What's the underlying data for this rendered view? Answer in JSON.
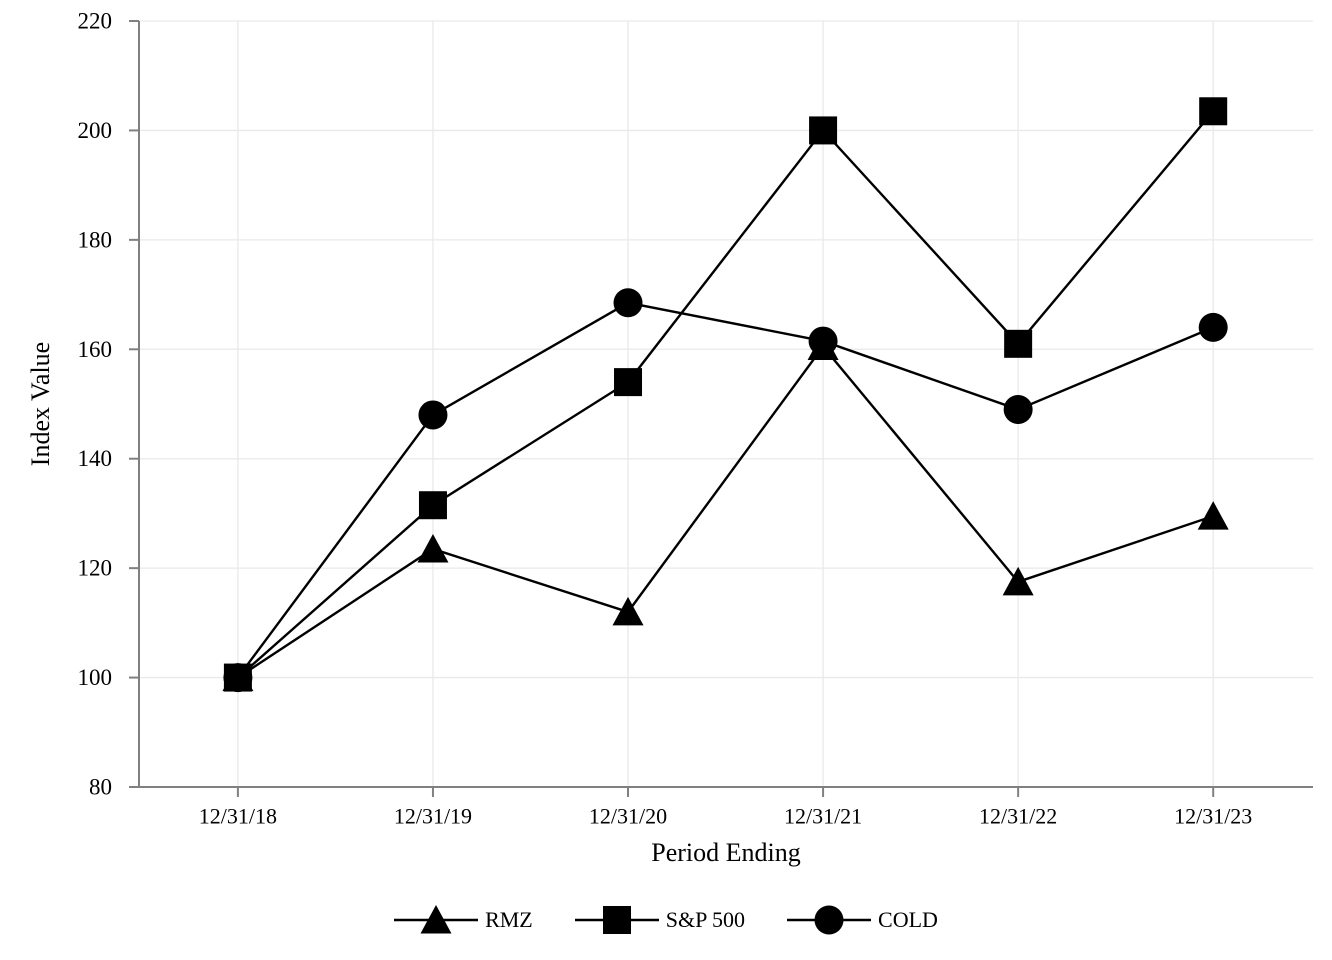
{
  "chart_data": {
    "type": "line",
    "title": "",
    "xlabel": "Period Ending",
    "ylabel": "Index Value",
    "categories": [
      "12/31/18",
      "12/31/19",
      "12/31/20",
      "12/31/21",
      "12/31/22",
      "12/31/23"
    ],
    "ylim": [
      80,
      220
    ],
    "ytick_step": 20,
    "ytick_labels": [
      "80",
      "100",
      "120",
      "140",
      "160",
      "180",
      "200",
      "220"
    ],
    "grid": true,
    "legend_position": "bottom-center",
    "legend_order": [
      "RMZ",
      "S&P 500",
      "COLD"
    ],
    "series": [
      {
        "name": "RMZ",
        "marker": "triangle",
        "values": [
          100,
          123.5,
          112,
          160.5,
          117.5,
          129.5
        ]
      },
      {
        "name": "COLD",
        "marker": "circle",
        "values": [
          100,
          148,
          168.5,
          161.5,
          149,
          164
        ]
      },
      {
        "name": "S&P 500",
        "marker": "square",
        "values": [
          100,
          131.5,
          154,
          200,
          161,
          203.5
        ]
      }
    ],
    "colors": {
      "series": "#000000",
      "grid": "#e9e9e9",
      "axis": "#808080",
      "text": "#000000"
    }
  }
}
